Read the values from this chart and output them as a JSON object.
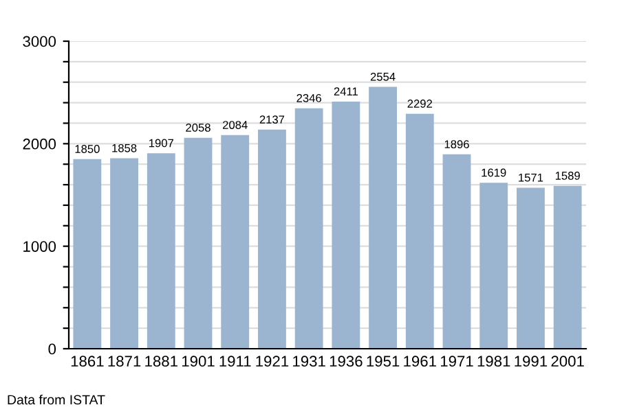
{
  "chart_data": {
    "type": "bar",
    "categories": [
      "1861",
      "1871",
      "1881",
      "1901",
      "1911",
      "1921",
      "1931",
      "1936",
      "1951",
      "1961",
      "1971",
      "1981",
      "1991",
      "2001"
    ],
    "values": [
      1850,
      1858,
      1907,
      2058,
      2084,
      2137,
      2346,
      2411,
      2554,
      2292,
      1896,
      1619,
      1571,
      1589
    ],
    "color": "#9bb4d0",
    "data_labels": true,
    "ylim": [
      0,
      3000
    ],
    "yticks": [
      0,
      {
        "value": 200,
        "label": null
      },
      {
        "value": 400,
        "label": null
      },
      {
        "value": 600,
        "label": null
      },
      {
        "value": 800,
        "label": null
      },
      1000,
      {
        "value": 1200,
        "label": null
      },
      {
        "value": 1400,
        "label": null
      },
      {
        "value": 1600,
        "label": null
      },
      {
        "value": 1800,
        "label": null
      },
      2000,
      {
        "value": 2200,
        "label": null
      },
      {
        "value": 2400,
        "label": null
      },
      {
        "value": 2600,
        "label": null
      },
      {
        "value": 2800,
        "label": null
      },
      3000
    ],
    "grid": "y",
    "annotations": [
      "Data from ISTAT"
    ]
  }
}
